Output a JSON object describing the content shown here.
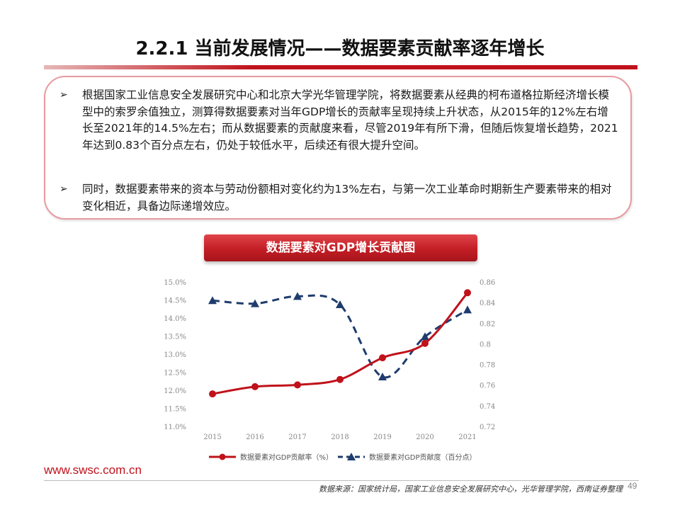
{
  "title": "2.2.1 当前发展情况——数据要素贡献率逐年增长",
  "bullets": [
    "根据国家工业信息安全发展研究中心和北京大学光华管理学院，将数据要素从经典的柯布道格拉斯经济增长模型中的索罗余值独立，测算得数据要素对当年GDP增长的贡献率呈现持续上升状态，从2015年的12%左右增长至2021年的14.5%左右；而从数据要素的贡献度来看，尽管2019年有所下滑，但随后恢复增长趋势，2021年达到0.83个百分点左右，仍处于较低水平，后续还有很大提升空间。",
    "同时，数据要素带来的资本与劳动份额相对变化约为13%左右，与第一次工业革命时期新生产要素带来的相对变化相近，具备边际递增效应。"
  ],
  "bullet_marker": "➢",
  "chart_title": "数据要素对GDP增长贡献图",
  "chart_data": {
    "type": "line",
    "x": [
      "2015",
      "2016",
      "2017",
      "2018",
      "2019",
      "2020",
      "2021"
    ],
    "series": [
      {
        "name": "数据要素对GDP贡献率（%）",
        "axis": "left",
        "style": "solid",
        "color": "#c0121b",
        "values": [
          11.9,
          12.1,
          12.15,
          12.3,
          12.9,
          13.3,
          14.7
        ]
      },
      {
        "name": "数据要素对GDP贡献度（百分点）",
        "axis": "right",
        "style": "dashed",
        "color": "#1f3c6e",
        "values": [
          0.842,
          0.839,
          0.846,
          0.838,
          0.768,
          0.807,
          0.833
        ]
      }
    ],
    "y_left": {
      "range": [
        11.0,
        15.0
      ],
      "ticks": [
        "11.0%",
        "11.5%",
        "12.0%",
        "12.5%",
        "13.0%",
        "13.5%",
        "14.0%",
        "14.5%",
        "15.0%"
      ]
    },
    "y_right": {
      "range": [
        0.72,
        0.86
      ],
      "ticks": [
        "0.72",
        "0.74",
        "0.76",
        "0.78",
        "0.8",
        "0.82",
        "0.84",
        "0.86"
      ]
    },
    "grid": false,
    "legend_position": "bottom"
  },
  "footer": {
    "url": "www.swsc.com.cn",
    "source": "数据来源：国家统计局，国家工业信息安全发展研究中心，光华管理学院，西南证券整理",
    "page": "49"
  },
  "colors": {
    "accent": "#c0121b",
    "navy": "#1f3c6e"
  }
}
